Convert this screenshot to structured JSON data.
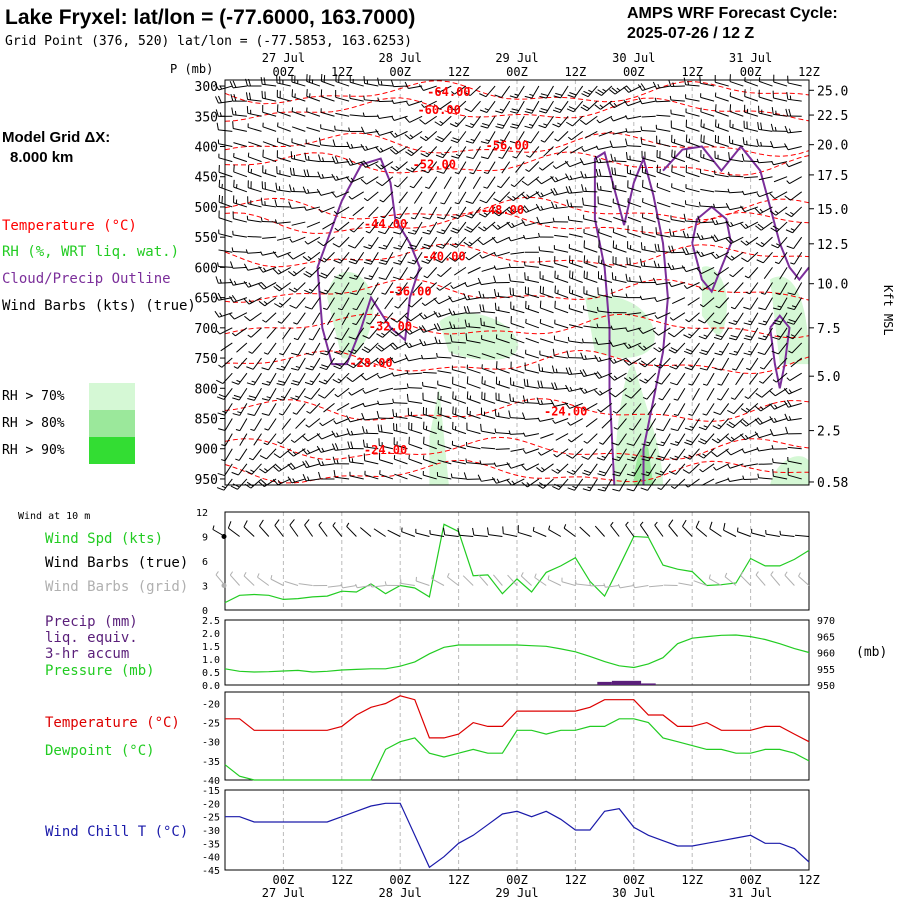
{
  "header": {
    "title": "Lake Fryxel:  lat/lon = (-77.6000, 163.7000)",
    "subtitle": "Grid Point (376, 520) lat/lon = (-77.5853, 163.6253)",
    "cycle_label": "AMPS WRF Forecast Cycle:",
    "cycle_value": "2025-07-26 / 12  Z",
    "grid_label": "Model Grid ΔX:",
    "grid_value": "8.000 km"
  },
  "legend": {
    "temperature": "Temperature (°C)",
    "rh": "RH (%, WRT liq. wat.)",
    "cloud": "Cloud/Precip Outline",
    "wind": "Wind Barbs (kts) (true)",
    "rh70": "RH > 70%",
    "rh80": "RH > 80%",
    "rh90": "RH > 90%"
  },
  "colors": {
    "temperature": "#ff0000",
    "cloud": "#7b2e9a",
    "rh70": "#d5f8d5",
    "rh80": "#9be89b",
    "rh90": "#33dd33",
    "wind_speed": "#22cc22",
    "pressure": "#22cc22",
    "precip": "#5a1f7a",
    "dewpoint": "#22cc22",
    "wind_chill": "#1a1aaa",
    "grid_barbs": "#b0b0b0"
  },
  "axes": {
    "time_ticks_top": [
      "00Z",
      "12Z",
      "00Z",
      "12Z",
      "00Z",
      "12Z",
      "00Z",
      "12Z",
      "00Z",
      "12Z"
    ],
    "date_labels": [
      "27 Jul",
      "28 Jul",
      "29 Jul",
      "30 Jul",
      "31 Jul"
    ],
    "time_ticks_bottom": [
      "00Z",
      "12Z",
      "00Z",
      "12Z",
      "00Z",
      "12Z",
      "00Z",
      "12Z",
      "00Z",
      "12Z"
    ],
    "pressure_title": "P (mb)",
    "pressure_levels": [
      "300",
      "350",
      "400",
      "450",
      "500",
      "550",
      "600",
      "650",
      "700",
      "750",
      "800",
      "850",
      "900",
      "950"
    ],
    "height_labels": [
      "25.0",
      "22.5",
      "20.0",
      "17.5",
      "15.0",
      "12.5",
      "10.0",
      "7.5",
      "5.0",
      "2.5",
      "0.58"
    ],
    "height_title": "Kft MSL"
  },
  "panels": {
    "wind": {
      "heading": "Wind at 10 m",
      "label_speed": "Wind Spd (kts)",
      "label_true": "Wind Barbs (true)",
      "label_grid": "Wind Barbs (grid)",
      "yticks": [
        "12",
        "9",
        "6",
        "3",
        "0"
      ]
    },
    "precip": {
      "label1": "Precip (mm)",
      "label2": "liq. equiv.",
      "label3": "3-hr accum",
      "label4": "Pressure (mb)",
      "left_ticks": [
        "2.5",
        "2.0",
        "1.5",
        "1.0",
        "0.5",
        "0.0"
      ],
      "right_ticks": [
        "970",
        "965",
        "960",
        "955",
        "950"
      ],
      "right_unit": "(mb)"
    },
    "temp": {
      "label_temp": "Temperature (°C)",
      "label_dew": "Dewpoint (°C)",
      "yticks": [
        "-20",
        "-25",
        "-30",
        "-35",
        "-40"
      ]
    },
    "chill": {
      "label": "Wind Chill T (°C)",
      "yticks": [
        "-15",
        "-20",
        "-25",
        "-30",
        "-35",
        "-40",
        "-45"
      ]
    }
  },
  "chart_data": [
    {
      "type": "cross-section",
      "title": "Lake Fryxel:  lat/lon = (-77.6000, 163.7000)",
      "x": "forecast hour 0..120 step 3 (2025-07-26 12Z to 2025-07-31 12Z)",
      "ylim": [
        960,
        290
      ],
      "temperature_contours": [
        {
          "label": "-64.00",
          "hour": 46,
          "p": 310
        },
        {
          "label": "-60.00",
          "hour": 44,
          "p": 340
        },
        {
          "label": "-56.00",
          "hour": 58,
          "p": 398
        },
        {
          "label": "-52.00",
          "hour": 43,
          "p": 430
        },
        {
          "label": "-48.00",
          "hour": 57,
          "p": 505
        },
        {
          "label": "-44.00",
          "hour": 33,
          "p": 528
        },
        {
          "label": "-40.00",
          "hour": 45,
          "p": 582
        },
        {
          "label": "-36.00",
          "hour": 38,
          "p": 640
        },
        {
          "label": "-32.00",
          "hour": 34,
          "p": 698
        },
        {
          "label": "-28.00",
          "hour": 30,
          "p": 758
        },
        {
          "label": "-24.00",
          "hour": 70,
          "p": 838
        },
        {
          "label": "-24.00",
          "hour": 33,
          "p": 902
        }
      ]
    },
    {
      "type": "line",
      "name": "Wind at 10 m",
      "x_start_hour": 0,
      "x_step_hours": 3,
      "ylim": [
        0,
        12
      ],
      "series": [
        {
          "name": "Wind Spd (kts)",
          "values": [
            0.9,
            1.8,
            1.9,
            1.8,
            1.3,
            1.4,
            1.6,
            1.7,
            2.3,
            2.2,
            3.2,
            2.0,
            3.0,
            2.7,
            1.6,
            10.5,
            9.6,
            4.2,
            4.3,
            2.0,
            3.8,
            2.2,
            4.6,
            5.4,
            6.4,
            3.5,
            1.7,
            5.3,
            9.0,
            8.9,
            5.5,
            5.0,
            4.7,
            3.0,
            3.1,
            3.3,
            6.3,
            5.4,
            5.4,
            6.2,
            7.3
          ]
        }
      ]
    },
    {
      "type": "line",
      "name": "Precip / Pressure",
      "x_start_hour": 0,
      "x_step_hours": 3,
      "series": [
        {
          "name": "Pressure (mb)",
          "axis": "right",
          "ylim": [
            950,
            970
          ],
          "values": [
            955.0,
            954.2,
            954.0,
            954.1,
            954.3,
            954.5,
            954.0,
            954.2,
            954.6,
            954.8,
            955.0,
            955.0,
            955.8,
            957.1,
            959.6,
            961.6,
            962.3,
            962.3,
            962.3,
            962.3,
            962.3,
            962.1,
            961.9,
            961.1,
            960.2,
            958.8,
            957.2,
            955.9,
            955.4,
            956.5,
            958.4,
            962.7,
            964.4,
            964.9,
            965.3,
            965.4,
            964.9,
            964.0,
            962.7,
            961.2,
            960.0
          ]
        },
        {
          "name": "Precip (mm)",
          "axis": "left",
          "ylim": [
            0,
            2.5
          ],
          "type": "bar",
          "values": [
            0,
            0,
            0,
            0,
            0,
            0,
            0,
            0,
            0,
            0,
            0,
            0,
            0,
            0,
            0,
            0,
            0,
            0,
            0,
            0,
            0,
            0,
            0,
            0,
            0,
            0,
            0.12,
            0.16,
            0.16,
            0.06,
            0,
            0,
            0,
            0,
            0,
            0,
            0,
            0,
            0,
            0,
            0
          ]
        }
      ]
    },
    {
      "type": "line",
      "name": "Temperature / Dewpoint",
      "x_start_hour": 0,
      "x_step_hours": 3,
      "ylim": [
        -40,
        -17
      ],
      "series": [
        {
          "name": "Temperature (°C)",
          "values": [
            -24,
            -24,
            -27,
            -27,
            -27,
            -27,
            -27,
            -27,
            -26,
            -23,
            -21,
            -20,
            -18,
            -19,
            -29,
            -29,
            -28,
            -25,
            -26,
            -26,
            -22,
            -22,
            -22,
            -22,
            -22,
            -21,
            -19,
            -19,
            -19,
            -23,
            -23,
            -26,
            -26,
            -25,
            -27,
            -27,
            -27,
            -26,
            -26,
            -28,
            -30
          ]
        },
        {
          "name": "Dewpoint (°C)",
          "values": [
            -36,
            -39,
            -40,
            -40,
            -40,
            -40,
            -40,
            -40,
            -40,
            -40,
            -40,
            -32,
            -30,
            -29,
            -33,
            -34,
            -33,
            -32,
            -33,
            -33,
            -27,
            -27,
            -28,
            -27,
            -27,
            -26,
            -26,
            -24,
            -24,
            -25,
            -29,
            -30,
            -31,
            -32,
            -32,
            -33,
            -33,
            -32,
            -32,
            -33,
            -35
          ]
        }
      ]
    },
    {
      "type": "line",
      "name": "Wind Chill",
      "x_start_hour": 0,
      "x_step_hours": 3,
      "ylim": [
        -45,
        -15
      ],
      "series": [
        {
          "name": "Wind Chill T (°C)",
          "values": [
            -25,
            -25,
            -27,
            -27,
            -27,
            -27,
            -27,
            -27,
            -25,
            -23,
            -21,
            -20,
            -20,
            -32,
            -44,
            -40,
            -35,
            -32,
            -28,
            -24,
            -23,
            -25,
            -23,
            -26,
            -30,
            -30,
            -23,
            -22,
            -29,
            -32,
            -34,
            -36,
            -36,
            -35,
            -34,
            -33,
            -32,
            -35,
            -35,
            -37,
            -42
          ]
        }
      ]
    }
  ]
}
